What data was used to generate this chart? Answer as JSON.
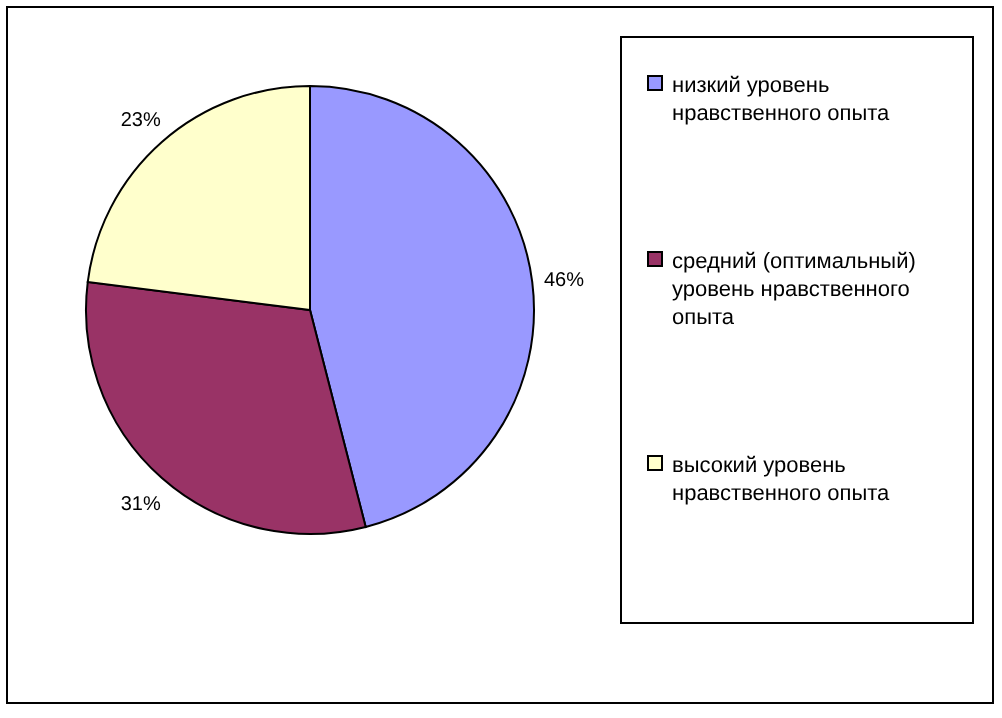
{
  "chart_data": {
    "type": "pie",
    "categories": [
      "низкий уровень нравственного опыта",
      "средний (оптимальный) уровень нравственного опыта",
      "высокий уровень нравственного опыта"
    ],
    "values": [
      46,
      31,
      23
    ],
    "value_labels": [
      "46%",
      "31%",
      "23%"
    ],
    "colors": [
      "#9999ff",
      "#993366",
      "#ffffcc"
    ],
    "legend": "right"
  }
}
